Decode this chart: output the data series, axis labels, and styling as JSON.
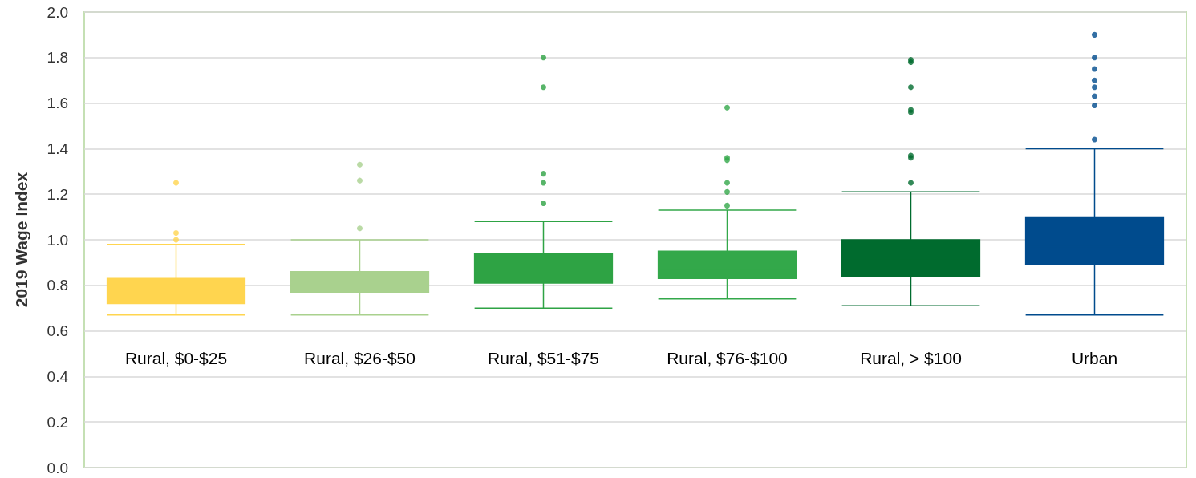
{
  "chart_data": {
    "type": "box",
    "ylabel": "2019 Wage Index",
    "categories": [
      "Rural, $0-$25",
      "Rural, $26-$50",
      "Rural, $51-$75",
      "Rural, $76-$100",
      "Rural, > $100",
      "Urban"
    ],
    "boxes": [
      {
        "low": 0.67,
        "q1": 0.72,
        "median": 0.78,
        "q3": 0.83,
        "high": 0.98,
        "outliers": [
          1.0,
          1.03,
          1.25
        ]
      },
      {
        "low": 0.67,
        "q1": 0.77,
        "median": 0.81,
        "q3": 0.86,
        "high": 1.0,
        "outliers": [
          1.05,
          1.26,
          1.33
        ]
      },
      {
        "low": 0.7,
        "q1": 0.81,
        "median": 0.86,
        "q3": 0.94,
        "high": 1.08,
        "outliers": [
          1.16,
          1.25,
          1.29,
          1.67,
          1.8
        ]
      },
      {
        "low": 0.74,
        "q1": 0.83,
        "median": 0.87,
        "q3": 0.95,
        "high": 1.13,
        "outliers": [
          1.15,
          1.21,
          1.25,
          1.35,
          1.36,
          1.58
        ]
      },
      {
        "low": 0.71,
        "q1": 0.84,
        "median": 0.91,
        "q3": 1.0,
        "high": 1.21,
        "outliers": [
          1.25,
          1.36,
          1.37,
          1.56,
          1.57,
          1.67,
          1.78,
          1.79
        ]
      },
      {
        "low": 0.67,
        "q1": 0.89,
        "median": 0.97,
        "q3": 1.1,
        "high": 1.4,
        "outliers": [
          1.44,
          1.59,
          1.63,
          1.67,
          1.7,
          1.75,
          1.8,
          1.9
        ]
      }
    ],
    "colors": [
      "#ffd54f",
      "#a9d18e",
      "#2ea344",
      "#33a84a",
      "#006b2e",
      "#004b8d"
    ],
    "ylim": [
      0,
      2.0
    ],
    "yticks": [
      {
        "value": 0,
        "label": "0.0"
      },
      0.2,
      0.4,
      0.6,
      0.8,
      {
        "value": 1,
        "label": "1.0"
      },
      1.2,
      1.4,
      1.6,
      1.8,
      {
        "value": 2,
        "label": "2.0"
      }
    ],
    "grid": "y"
  }
}
